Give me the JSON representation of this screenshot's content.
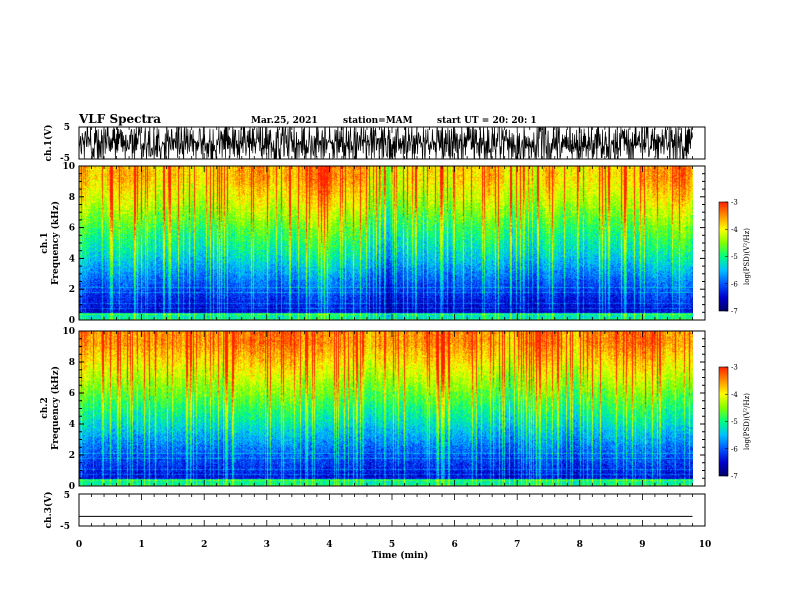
{
  "header": {
    "title": "VLF Spectra",
    "date": "Mar.25, 2021",
    "station": "station=MAM",
    "start": "start  UT =   20: 20: 1"
  },
  "chart_data": [
    {
      "type": "line",
      "panel": "waveform-ch1",
      "ylabel": "ch.1(V)",
      "ylim": [
        -5,
        5
      ],
      "yticks": [
        "5",
        "-5"
      ],
      "xlim": [
        0,
        10
      ],
      "description_series": "dense black waveform spanning ~0 to 9.8 min, amplitude saturating near ±5 V"
    },
    {
      "type": "heatmap",
      "panel": "spectrogram-ch1",
      "ylabel": "ch.1\nFrequency (kHz)",
      "ylabel_line1": "ch.1",
      "ylabel_line2": "Frequency (kHz)",
      "ylim": [
        0,
        10
      ],
      "yticks": [
        "0",
        "2",
        "4",
        "6",
        "8",
        "10"
      ],
      "xlim": [
        0,
        10
      ],
      "data_end_min": 9.8,
      "colorbar": {
        "range": [
          -7,
          -3
        ],
        "ticks": [
          "-3",
          "-4",
          "-5",
          "-6",
          "-7"
        ],
        "label": "log(PSD)(V²/Hz)"
      },
      "bands": [
        {
          "freq_khz": [
            0,
            1.2
          ],
          "log_psd": -6.5,
          "color": "dark blue"
        },
        {
          "freq_khz": [
            1.2,
            3.5
          ],
          "log_psd": -6.0,
          "color": "blue"
        },
        {
          "freq_khz": [
            3.5,
            5.0
          ],
          "log_psd": -5.3,
          "color": "cyan"
        },
        {
          "freq_khz": [
            5.0,
            7.0
          ],
          "log_psd": -4.8,
          "color": "green"
        },
        {
          "freq_khz": [
            7.0,
            8.5
          ],
          "log_psd": -4.2,
          "color": "yellow"
        },
        {
          "freq_khz": [
            8.5,
            10
          ],
          "log_psd": -3.8,
          "color": "orange"
        }
      ]
    },
    {
      "type": "heatmap",
      "panel": "spectrogram-ch2",
      "ylabel_line1": "ch.2",
      "ylabel_line2": "Frequency (kHz)",
      "ylim": [
        0,
        10
      ],
      "yticks": [
        "0",
        "2",
        "4",
        "6",
        "8",
        "10"
      ],
      "xlim": [
        0,
        10
      ],
      "data_end_min": 9.8,
      "colorbar": {
        "range": [
          -7,
          -3
        ],
        "ticks": [
          "-3",
          "-4",
          "-5",
          "-6",
          "-7"
        ],
        "label": "log(PSD)(V²/Hz)"
      },
      "bands": [
        {
          "freq_khz": [
            0,
            1.2
          ],
          "log_psd": -6.4,
          "color": "dark blue"
        },
        {
          "freq_khz": [
            1.2,
            3.5
          ],
          "log_psd": -5.9,
          "color": "blue"
        },
        {
          "freq_khz": [
            3.5,
            5.0
          ],
          "log_psd": -5.2,
          "color": "cyan"
        },
        {
          "freq_khz": [
            5.0,
            7.0
          ],
          "log_psd": -4.6,
          "color": "green"
        },
        {
          "freq_khz": [
            7.0,
            8.5
          ],
          "log_psd": -4.0,
          "color": "yellow"
        },
        {
          "freq_khz": [
            8.5,
            10
          ],
          "log_psd": -3.5,
          "color": "red"
        }
      ]
    },
    {
      "type": "line",
      "panel": "waveform-ch3",
      "ylabel": "ch.3(V)",
      "ylim": [
        -5,
        5
      ],
      "yticks": [
        "5",
        "-5"
      ],
      "xlim": [
        0,
        10
      ],
      "series": [
        {
          "x": [
            0,
            9.8
          ],
          "y": [
            -2,
            -2
          ]
        }
      ]
    }
  ],
  "xaxis": {
    "label": "Time (min)",
    "ticks": [
      "0",
      "1",
      "2",
      "3",
      "4",
      "5",
      "6",
      "7",
      "8",
      "9",
      "10"
    ]
  },
  "colors": {
    "colormap": [
      "#000066",
      "#0000cc",
      "#0055ff",
      "#00c0ff",
      "#00ff80",
      "#80ff00",
      "#ffff00",
      "#ff9000",
      "#ff2000"
    ]
  }
}
